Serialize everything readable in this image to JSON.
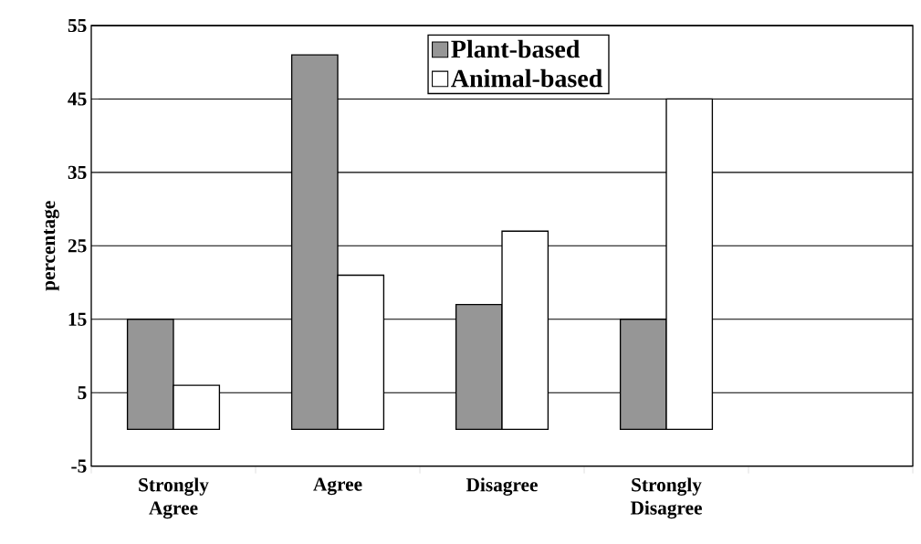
{
  "chart_data": {
    "type": "bar",
    "ylabel": "percentage",
    "categories": [
      "Strongly Agree",
      "Agree",
      "Disagree",
      "Strongly Disagree"
    ],
    "series": [
      {
        "name": "Plant-based",
        "color": "#969696",
        "values": [
          15,
          51,
          17,
          15
        ]
      },
      {
        "name": "Animal-based",
        "color": "#ffffff",
        "values": [
          6,
          21,
          27,
          45
        ]
      }
    ],
    "ylim": [
      -5,
      55
    ],
    "yticks": [
      -5,
      5,
      15,
      25,
      35,
      45,
      55
    ],
    "grid": "y",
    "legend": "top"
  }
}
